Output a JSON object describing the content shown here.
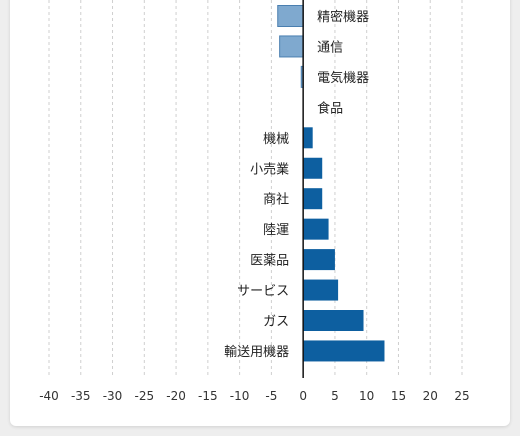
{
  "chart_data": {
    "type": "bar",
    "orientation": "horizontal",
    "categories": [
      "精密機器",
      "通信",
      "電気機器",
      "食品",
      "機械",
      "小売業",
      "商社",
      "陸運",
      "医薬品",
      "サービス",
      "ガス",
      "輸送用機器"
    ],
    "values": [
      -4,
      -3.7,
      -0.3,
      0,
      1.5,
      3,
      3,
      4,
      5,
      5.5,
      9.5,
      12.8
    ],
    "xlim": [
      -40,
      25
    ],
    "xticks": [
      -40,
      -35,
      -30,
      -25,
      -20,
      -15,
      -10,
      -5,
      0,
      5,
      10,
      15,
      20,
      25
    ],
    "grid": true,
    "colors": {
      "positive": "#0d5fa0",
      "negative": "#7fa9cf"
    }
  }
}
